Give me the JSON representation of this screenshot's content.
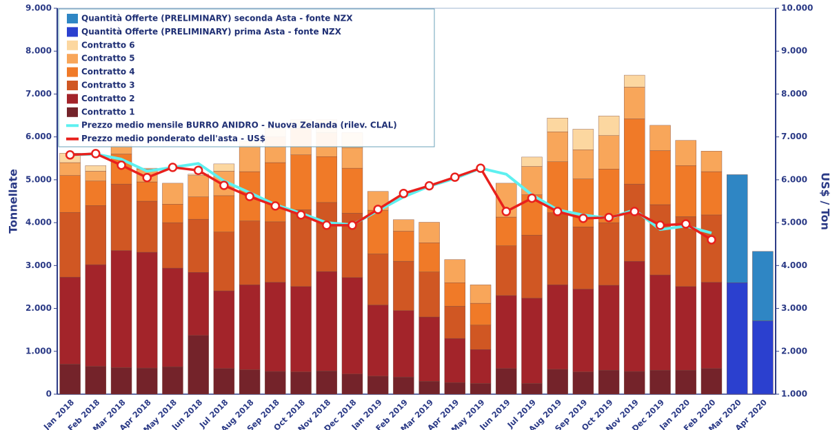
{
  "chart_data": {
    "type": "bar",
    "ylabel": "Tonnellate",
    "y2label": "US$ / Ton",
    "categories": [
      "Jan 2018",
      "Feb 2018",
      "Mar 2018",
      "Apr 2018",
      "May 2018",
      "Jun 2018",
      "Jul 2018",
      "Aug 2018",
      "Sep 2018",
      "Oct 2018",
      "Nov 2018",
      "Dec 2018",
      "Jan 2019",
      "Feb 2019",
      "Mar 2019",
      "Apr 2019",
      "May 2019",
      "Jun 2019",
      "Jul 2019",
      "Aug 2019",
      "Sep 2019",
      "Oct 2019",
      "Nov 2019",
      "Dec 2019",
      "Jan 2020",
      "Feb 2020",
      "Mar 2020",
      "Apr 2020"
    ],
    "stacked": true,
    "series": [
      {
        "name": "Quantità Offerte (PRELIMINARY) seconda Asta - fonte NZX",
        "type": "bar",
        "color": "#2f86c4",
        "values": [
          null,
          null,
          null,
          null,
          null,
          null,
          null,
          null,
          null,
          null,
          null,
          null,
          null,
          null,
          null,
          null,
          null,
          null,
          null,
          null,
          null,
          null,
          null,
          null,
          null,
          null,
          2520,
          1620
        ]
      },
      {
        "name": "Quantità Offerte (PRELIMINARY) prima Asta - fonte NZX",
        "type": "bar",
        "color": "#2b40cf",
        "values": [
          null,
          null,
          null,
          null,
          null,
          null,
          null,
          null,
          null,
          null,
          null,
          null,
          null,
          null,
          null,
          null,
          null,
          null,
          null,
          null,
          null,
          null,
          null,
          null,
          null,
          null,
          2600,
          1710
        ]
      },
      {
        "name": "Contratto 6",
        "type": "bar",
        "color": "#fcd7a0",
        "values": [
          220,
          130,
          50,
          20,
          0,
          30,
          170,
          100,
          200,
          200,
          300,
          350,
          0,
          0,
          0,
          0,
          0,
          0,
          220,
          320,
          480,
          460,
          280,
          0,
          0,
          0,
          null,
          null
        ]
      },
      {
        "name": "Contratto 5",
        "type": "bar",
        "color": "#f8a65a",
        "values": [
          300,
          230,
          200,
          300,
          490,
          500,
          570,
          610,
          600,
          620,
          560,
          480,
          440,
          270,
          480,
          540,
          430,
          790,
          660,
          700,
          680,
          780,
          740,
          590,
          590,
          480,
          null,
          null
        ]
      },
      {
        "name": "Contratto 4",
        "type": "bar",
        "color": "#f07a28",
        "values": [
          860,
          570,
          700,
          450,
          430,
          520,
          850,
          1150,
          1380,
          1280,
          1070,
          1050,
          1020,
          700,
          680,
          550,
          510,
          670,
          940,
          1190,
          1120,
          1250,
          1520,
          1260,
          1190,
          1010,
          null,
          null
        ]
      },
      {
        "name": "Contratto 3",
        "type": "bar",
        "color": "#d05723",
        "values": [
          1510,
          1380,
          1550,
          1190,
          1060,
          1240,
          1370,
          1490,
          1410,
          1790,
          1610,
          1500,
          1190,
          1150,
          1050,
          750,
          570,
          1160,
          1470,
          1680,
          1450,
          1460,
          1800,
          1640,
          1630,
          1570,
          null,
          null
        ]
      },
      {
        "name": "Contratto 2",
        "type": "bar",
        "color": "#a3242a",
        "values": [
          2030,
          2370,
          2730,
          2700,
          2300,
          1470,
          1810,
          1980,
          2080,
          1990,
          2320,
          2250,
          1660,
          1550,
          1500,
          1030,
          790,
          1700,
          1990,
          1970,
          1930,
          1980,
          2570,
          2220,
          1950,
          2010,
          null,
          null
        ]
      },
      {
        "name": "Contratto 1",
        "type": "bar",
        "color": "#74232a",
        "values": [
          700,
          650,
          620,
          610,
          640,
          1370,
          600,
          570,
          530,
          520,
          540,
          470,
          420,
          400,
          300,
          270,
          250,
          600,
          250,
          580,
          520,
          560,
          530,
          560,
          560,
          600,
          null,
          null
        ]
      },
      {
        "name": "Prezzo medio mensile BURRO ANIDRO - Nuova Zelanda (rilev. CLAL)",
        "type": "line",
        "axis": "y2",
        "color": "#5ef0f0",
        "values": [
          6580,
          6600,
          6480,
          6200,
          6290,
          6380,
          5970,
          5700,
          5420,
          5220,
          5000,
          4950,
          5280,
          5600,
          5850,
          6030,
          6270,
          6130,
          5650,
          5300,
          5180,
          5100,
          5300,
          4840,
          4920,
          4760,
          null,
          null
        ]
      },
      {
        "name": "Prezzo medio ponderato dell'asta - US$",
        "type": "line",
        "axis": "y2",
        "color": "#e8201c",
        "markers": true,
        "values": [
          6580,
          6610,
          6340,
          6050,
          6290,
          6220,
          5870,
          5610,
          5390,
          5180,
          4940,
          4940,
          5310,
          5680,
          5860,
          6060,
          6270,
          5260,
          5570,
          5260,
          5100,
          5120,
          5260,
          4940,
          4970,
          4600,
          null,
          null
        ]
      }
    ],
    "ylim": [
      0,
      9000
    ],
    "yticks": [
      {
        "value": 0,
        "label": "0"
      },
      {
        "value": 1000,
        "label": "1.000"
      },
      {
        "value": 2000,
        "label": "2.000"
      },
      {
        "value": 3000,
        "label": "3.000"
      },
      {
        "value": 4000,
        "label": "4.000"
      },
      {
        "value": 5000,
        "label": "5.000"
      },
      {
        "value": 6000,
        "label": "6.000"
      },
      {
        "value": 7000,
        "label": "7.000"
      },
      {
        "value": 8000,
        "label": "8.000"
      },
      {
        "value": 9000,
        "label": "9.000"
      }
    ],
    "y2lim": [
      1000,
      10000
    ],
    "y2ticks": [
      {
        "value": 1000,
        "label": "1.000"
      },
      {
        "value": 2000,
        "label": "2.000"
      },
      {
        "value": 3000,
        "label": "3.000"
      },
      {
        "value": 4000,
        "label": "4.000"
      },
      {
        "value": 5000,
        "label": "5.000"
      },
      {
        "value": 6000,
        "label": "6.000"
      },
      {
        "value": 7000,
        "label": "7.000"
      },
      {
        "value": 8000,
        "label": "8.000"
      },
      {
        "value": 9000,
        "label": "9.000"
      },
      {
        "value": 10000,
        "label": "10.000"
      }
    ],
    "legend": "upper left"
  }
}
